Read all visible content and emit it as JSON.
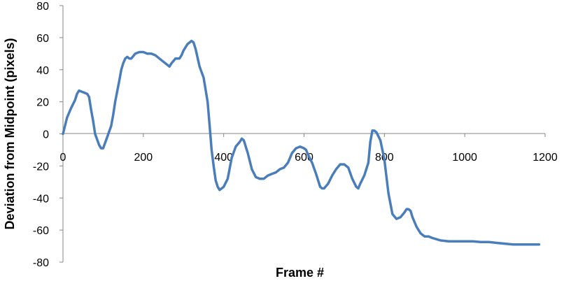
{
  "chart_data": {
    "type": "line",
    "title": "",
    "xlabel": "Frame #",
    "ylabel": "Deviation from Midpoint (pixels)",
    "xlim": [
      0,
      1200
    ],
    "ylim": [
      -80,
      80
    ],
    "x_ticks": [
      0,
      200,
      400,
      600,
      800,
      1000,
      1200
    ],
    "y_ticks": [
      80,
      60,
      40,
      20,
      0,
      -20,
      -40,
      -60,
      -80
    ],
    "x_tick_labels": [
      "0",
      "200",
      "400",
      "600",
      "800",
      "1000",
      "1200"
    ],
    "y_tick_labels": [
      "80",
      "60",
      "40",
      "20",
      "0",
      "-20",
      "-40",
      "-60",
      "-80"
    ],
    "grid": false,
    "legend": "none",
    "line_color": "#4a7ebb",
    "series": [
      {
        "x": [
          0,
          5,
          10,
          20,
          30,
          35,
          40,
          50,
          60,
          65,
          70,
          75,
          80,
          90,
          95,
          100,
          110,
          120,
          125,
          130,
          140,
          145,
          150,
          155,
          160,
          165,
          170,
          180,
          190,
          200,
          210,
          220,
          230,
          240,
          250,
          260,
          265,
          270,
          280,
          290,
          295,
          300,
          310,
          320,
          325,
          330,
          340,
          350,
          360,
          365,
          370,
          375,
          380,
          385,
          390,
          400,
          410,
          420,
          430,
          440,
          445,
          450,
          460,
          470,
          480,
          490,
          500,
          510,
          520,
          530,
          540,
          550,
          560,
          570,
          580,
          590,
          600,
          605,
          610,
          620,
          630,
          640,
          645,
          650,
          660,
          670,
          680,
          690,
          700,
          710,
          720,
          730,
          735,
          740,
          750,
          760,
          765,
          770,
          775,
          780,
          790,
          800,
          810,
          820,
          830,
          840,
          850,
          855,
          860,
          865,
          870,
          880,
          890,
          900,
          910,
          920,
          940,
          960,
          980,
          1000,
          1020,
          1040,
          1060,
          1080,
          1100,
          1120,
          1140,
          1160,
          1185
        ],
        "y": [
          0,
          5,
          10,
          16,
          21,
          25,
          27,
          26,
          25,
          23,
          15,
          8,
          0,
          -7,
          -9,
          -9,
          -2,
          5,
          12,
          20,
          33,
          40,
          44,
          47,
          48,
          47,
          47,
          50,
          51,
          51,
          50,
          50,
          49,
          47,
          45,
          43,
          42,
          44,
          47,
          47,
          49,
          52,
          56,
          58,
          57,
          53,
          42,
          35,
          20,
          5,
          -10,
          -20,
          -29,
          -33,
          -35,
          -33,
          -28,
          -15,
          -8,
          -5,
          -3,
          -4,
          -12,
          -22,
          -27,
          -28,
          -28,
          -26,
          -25,
          -24,
          -22,
          -21,
          -18,
          -12,
          -9,
          -8,
          -9,
          -10,
          -13,
          -18,
          -25,
          -33,
          -34,
          -34,
          -31,
          -26,
          -22,
          -19,
          -19,
          -21,
          -28,
          -33,
          -34,
          -31,
          -26,
          -18,
          -5,
          2,
          2,
          1,
          -4,
          -16,
          -37,
          -50,
          -53,
          -52,
          -49,
          -47,
          -47,
          -48,
          -52,
          -58,
          -62,
          -64,
          -64,
          -65,
          -66.5,
          -67,
          -67,
          -67,
          -67,
          -67.5,
          -67.5,
          -68,
          -68.5,
          -69,
          -69,
          -69,
          -69
        ]
      }
    ]
  }
}
